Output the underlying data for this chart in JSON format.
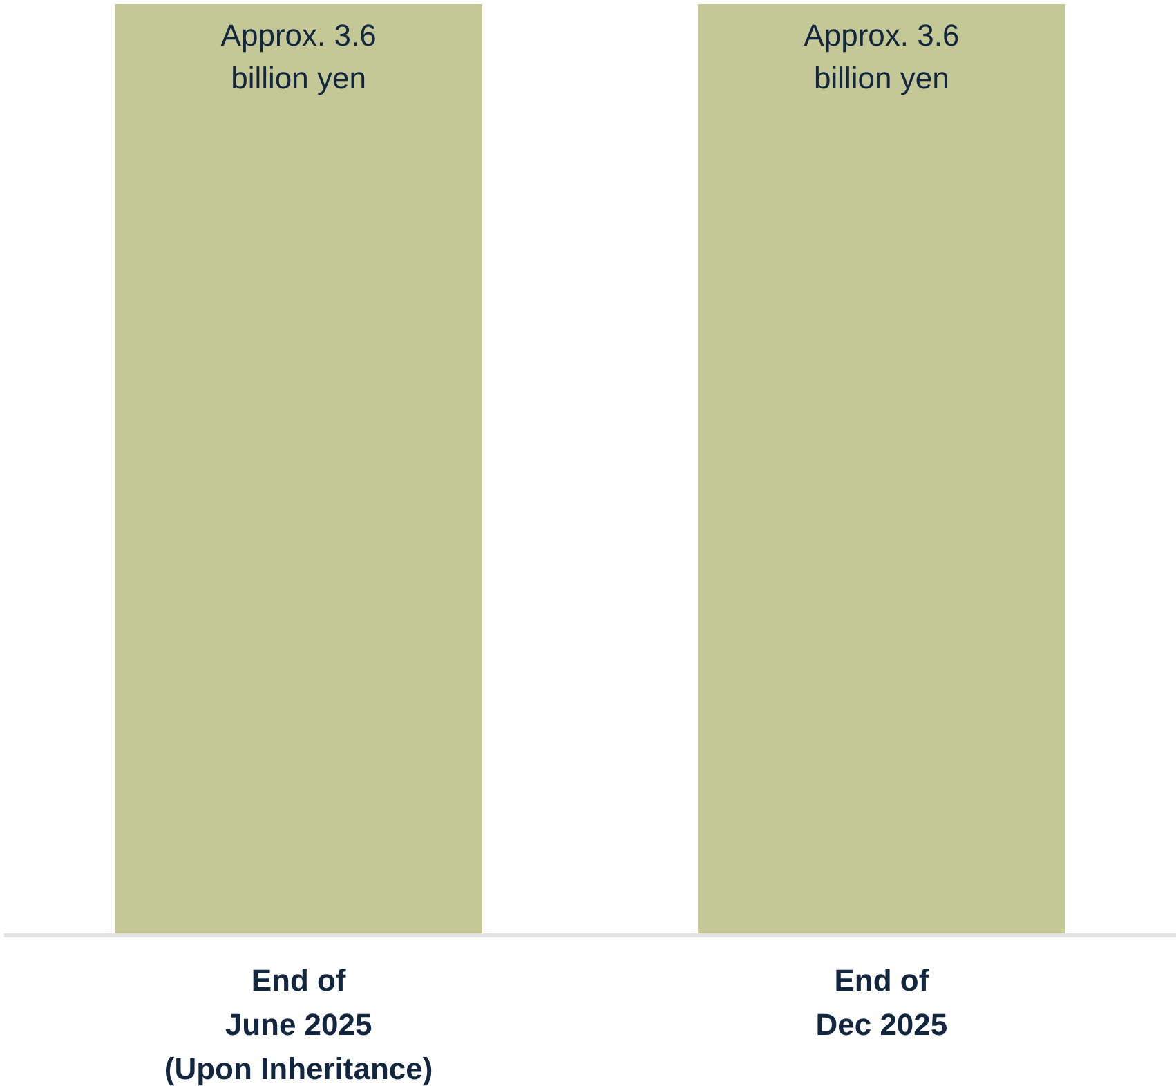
{
  "chart_data": {
    "type": "bar",
    "categories": [
      "End of\nJune 2025\n(Upon Inheritance)",
      "End of\nDec 2025"
    ],
    "values": [
      3.6,
      3.6
    ],
    "color": "#c4c896",
    "value_labels": [
      "Approx. 3.6 billion yen",
      "Approx. 3.6 billion yen"
    ]
  }
}
